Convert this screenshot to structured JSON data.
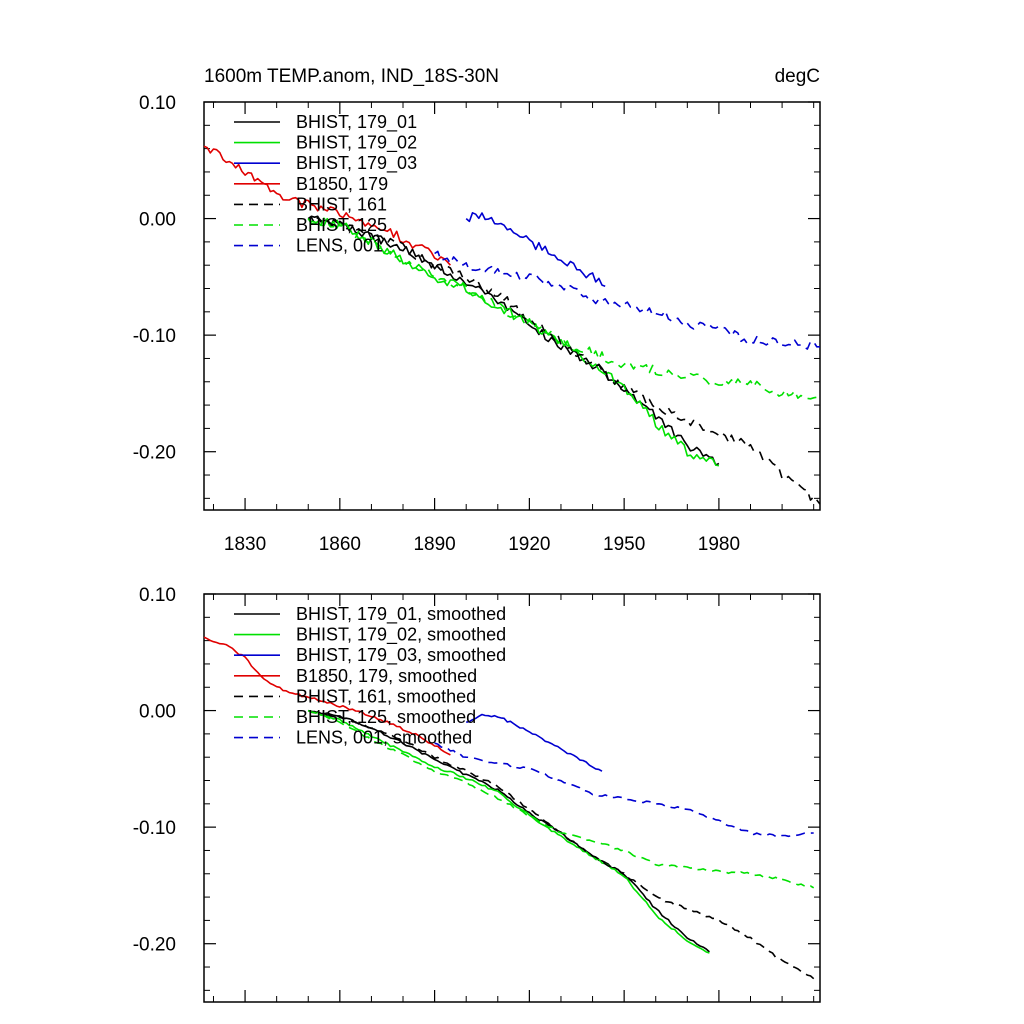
{
  "chart_data": [
    {
      "type": "line",
      "title": "1600m TEMP.anom, IND_18S-30N",
      "units": "degC",
      "xlim": [
        1817,
        2012
      ],
      "ylim": [
        -0.25,
        0.1
      ],
      "x_ticks": [
        1830,
        1860,
        1890,
        1920,
        1950,
        1980
      ],
      "x_tick_labels": [
        "1830",
        "1860",
        "1890",
        "1920",
        "1950",
        "1980"
      ],
      "y_ticks": [
        0.1,
        0.0,
        -0.1,
        -0.2
      ],
      "y_tick_labels": [
        "0.10",
        "0.00",
        "-0.10",
        "-0.20"
      ],
      "grid": false,
      "legend_position": "top-left",
      "series": [
        {
          "name": "BHIST, 179_01",
          "color": "#000000",
          "dash": "solid",
          "noise": 0.004,
          "x": [
            1850,
            1860,
            1870,
            1880,
            1890,
            1900,
            1910,
            1920,
            1930,
            1940,
            1950,
            1960,
            1970,
            1980
          ],
          "y": [
            0.0,
            -0.005,
            -0.015,
            -0.025,
            -0.04,
            -0.055,
            -0.07,
            -0.09,
            -0.11,
            -0.125,
            -0.145,
            -0.17,
            -0.195,
            -0.21
          ]
        },
        {
          "name": "BHIST, 179_02",
          "color": "#00e000",
          "dash": "solid",
          "noise": 0.004,
          "x": [
            1850,
            1860,
            1870,
            1880,
            1890,
            1900,
            1910,
            1920,
            1930,
            1940,
            1950,
            1960,
            1970,
            1980
          ],
          "y": [
            0.0,
            -0.005,
            -0.02,
            -0.035,
            -0.05,
            -0.06,
            -0.075,
            -0.09,
            -0.105,
            -0.125,
            -0.145,
            -0.175,
            -0.2,
            -0.212
          ]
        },
        {
          "name": "BHIST, 179_03",
          "color": "#0000d0",
          "dash": "solid",
          "noise": 0.004,
          "x": [
            1900,
            1905,
            1910,
            1920,
            1930,
            1940,
            1944
          ],
          "y": [
            0.0,
            0.005,
            -0.005,
            -0.02,
            -0.035,
            -0.05,
            -0.058
          ]
        },
        {
          "name": "B1850, 179",
          "color": "#e00000",
          "dash": "solid",
          "noise": 0.004,
          "x": [
            1817,
            1825,
            1835,
            1845,
            1855,
            1865,
            1875,
            1885,
            1895
          ],
          "y": [
            0.062,
            0.05,
            0.03,
            0.015,
            0.008,
            0.0,
            -0.01,
            -0.025,
            -0.04
          ]
        },
        {
          "name": "BHIST, 161",
          "color": "#000000",
          "dash": "dash",
          "noise": 0.004,
          "x": [
            1850,
            1860,
            1870,
            1880,
            1890,
            1900,
            1910,
            1920,
            1930,
            1940,
            1950,
            1960,
            1970,
            1980,
            1990,
            2000,
            2012
          ],
          "y": [
            0.0,
            -0.005,
            -0.015,
            -0.025,
            -0.04,
            -0.05,
            -0.065,
            -0.085,
            -0.105,
            -0.125,
            -0.145,
            -0.16,
            -0.175,
            -0.185,
            -0.195,
            -0.22,
            -0.245
          ]
        },
        {
          "name": "BHIST, 125",
          "color": "#00e000",
          "dash": "dash",
          "noise": 0.004,
          "x": [
            1850,
            1860,
            1870,
            1880,
            1890,
            1900,
            1910,
            1920,
            1930,
            1940,
            1950,
            1960,
            1970,
            1980,
            1990,
            2000,
            2012
          ],
          "y": [
            0.0,
            -0.005,
            -0.02,
            -0.035,
            -0.05,
            -0.06,
            -0.075,
            -0.09,
            -0.105,
            -0.115,
            -0.125,
            -0.13,
            -0.135,
            -0.14,
            -0.14,
            -0.15,
            -0.155
          ]
        },
        {
          "name": "LENS, 001",
          "color": "#0000d0",
          "dash": "dash",
          "noise": 0.004,
          "x": [
            1890,
            1900,
            1910,
            1920,
            1930,
            1940,
            1950,
            1960,
            1970,
            1980,
            1990,
            2000,
            2012
          ],
          "y": [
            -0.03,
            -0.04,
            -0.045,
            -0.05,
            -0.058,
            -0.07,
            -0.075,
            -0.08,
            -0.09,
            -0.095,
            -0.105,
            -0.105,
            -0.11
          ]
        }
      ]
    },
    {
      "type": "line",
      "title": "",
      "xlim": [
        1817,
        2012
      ],
      "ylim": [
        -0.25,
        0.1
      ],
      "x_ticks": [
        1830,
        1860,
        1890,
        1920,
        1950,
        1980
      ],
      "x_tick_labels": [],
      "y_ticks": [
        0.1,
        0.0,
        -0.1,
        -0.2
      ],
      "y_tick_labels": [
        "0.10",
        "0.00",
        "-0.10",
        "-0.20"
      ],
      "grid": false,
      "legend_position": "top-left",
      "series": [
        {
          "name": "BHIST, 179_01, smoothed",
          "color": "#000000",
          "dash": "solid",
          "noise": 0.001,
          "x": [
            1850,
            1860,
            1870,
            1880,
            1890,
            1900,
            1910,
            1920,
            1930,
            1940,
            1950,
            1960,
            1970,
            1977
          ],
          "y": [
            0.0,
            -0.005,
            -0.015,
            -0.028,
            -0.042,
            -0.055,
            -0.068,
            -0.088,
            -0.105,
            -0.125,
            -0.14,
            -0.17,
            -0.195,
            -0.207
          ]
        },
        {
          "name": "BHIST, 179_02, smoothed",
          "color": "#00e000",
          "dash": "solid",
          "noise": 0.001,
          "x": [
            1850,
            1860,
            1870,
            1880,
            1890,
            1900,
            1910,
            1920,
            1930,
            1940,
            1950,
            1960,
            1970,
            1977
          ],
          "y": [
            0.0,
            -0.008,
            -0.022,
            -0.035,
            -0.048,
            -0.058,
            -0.07,
            -0.09,
            -0.108,
            -0.125,
            -0.142,
            -0.175,
            -0.198,
            -0.208
          ]
        },
        {
          "name": "BHIST, 179_03, smoothed",
          "color": "#0000d0",
          "dash": "solid",
          "noise": 0.001,
          "x": [
            1900,
            1905,
            1910,
            1920,
            1930,
            1940,
            1943
          ],
          "y": [
            -0.01,
            -0.003,
            -0.005,
            -0.018,
            -0.033,
            -0.048,
            -0.052
          ]
        },
        {
          "name": "B1850, 179, smoothed",
          "color": "#e00000",
          "dash": "solid",
          "noise": 0.001,
          "x": [
            1817,
            1825,
            1830,
            1835,
            1840,
            1845,
            1855,
            1865,
            1875,
            1885,
            1895
          ],
          "y": [
            0.063,
            0.055,
            0.045,
            0.03,
            0.02,
            0.015,
            0.008,
            0.0,
            -0.01,
            -0.022,
            -0.038
          ]
        },
        {
          "name": "BHIST, 161, smoothed",
          "color": "#000000",
          "dash": "dash",
          "noise": 0.001,
          "x": [
            1850,
            1860,
            1870,
            1880,
            1890,
            1900,
            1910,
            1920,
            1930,
            1940,
            1950,
            1960,
            1970,
            1980,
            1990,
            2000,
            2010
          ],
          "y": [
            0.0,
            -0.005,
            -0.015,
            -0.025,
            -0.04,
            -0.052,
            -0.065,
            -0.085,
            -0.105,
            -0.125,
            -0.14,
            -0.16,
            -0.17,
            -0.18,
            -0.195,
            -0.215,
            -0.23
          ]
        },
        {
          "name": "BHIST, 125, smoothed",
          "color": "#00e000",
          "dash": "dash",
          "noise": 0.001,
          "x": [
            1850,
            1860,
            1870,
            1880,
            1890,
            1900,
            1910,
            1920,
            1930,
            1940,
            1950,
            1960,
            1970,
            1980,
            1990,
            2000,
            2010
          ],
          "y": [
            0.0,
            -0.01,
            -0.025,
            -0.038,
            -0.052,
            -0.062,
            -0.075,
            -0.09,
            -0.105,
            -0.112,
            -0.12,
            -0.132,
            -0.135,
            -0.138,
            -0.14,
            -0.145,
            -0.152
          ]
        },
        {
          "name": "LENS, 001, smoothed",
          "color": "#0000d0",
          "dash": "dash",
          "noise": 0.001,
          "x": [
            1890,
            1900,
            1910,
            1920,
            1930,
            1940,
            1950,
            1960,
            1970,
            1980,
            1990,
            2000,
            2010
          ],
          "y": [
            -0.028,
            -0.04,
            -0.045,
            -0.05,
            -0.06,
            -0.072,
            -0.075,
            -0.08,
            -0.085,
            -0.095,
            -0.105,
            -0.108,
            -0.105
          ]
        }
      ]
    }
  ]
}
